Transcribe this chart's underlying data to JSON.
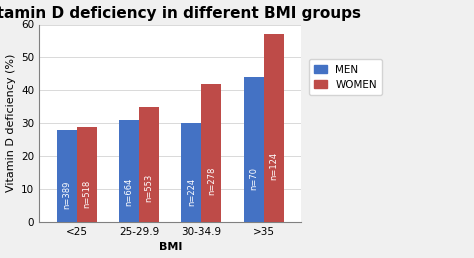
{
  "title": "Vitamin D deficiency in different BMI groups",
  "xlabel": "BMI",
  "ylabel": "Vitamin D deficiency (%)",
  "categories": [
    "<25",
    "25-29.9",
    "30-34.9",
    ">35"
  ],
  "men_values": [
    28,
    31,
    30,
    44
  ],
  "women_values": [
    29,
    35,
    42,
    57
  ],
  "men_labels": [
    "n=389",
    "n=664",
    "n=224",
    "n=70"
  ],
  "women_labels": [
    "n=518",
    "n=553",
    "n=278",
    "n=124"
  ],
  "men_color": "#4472C4",
  "women_color": "#BE4B48",
  "ylim": [
    0,
    60
  ],
  "yticks": [
    0,
    10,
    20,
    30,
    40,
    50,
    60
  ],
  "bar_width": 0.32,
  "title_fontsize": 11,
  "axis_label_fontsize": 8,
  "tick_fontsize": 7.5,
  "legend_fontsize": 7.5,
  "annotation_fontsize": 6,
  "background_color": "#ffffff",
  "outer_bg": "#f0f0f0"
}
